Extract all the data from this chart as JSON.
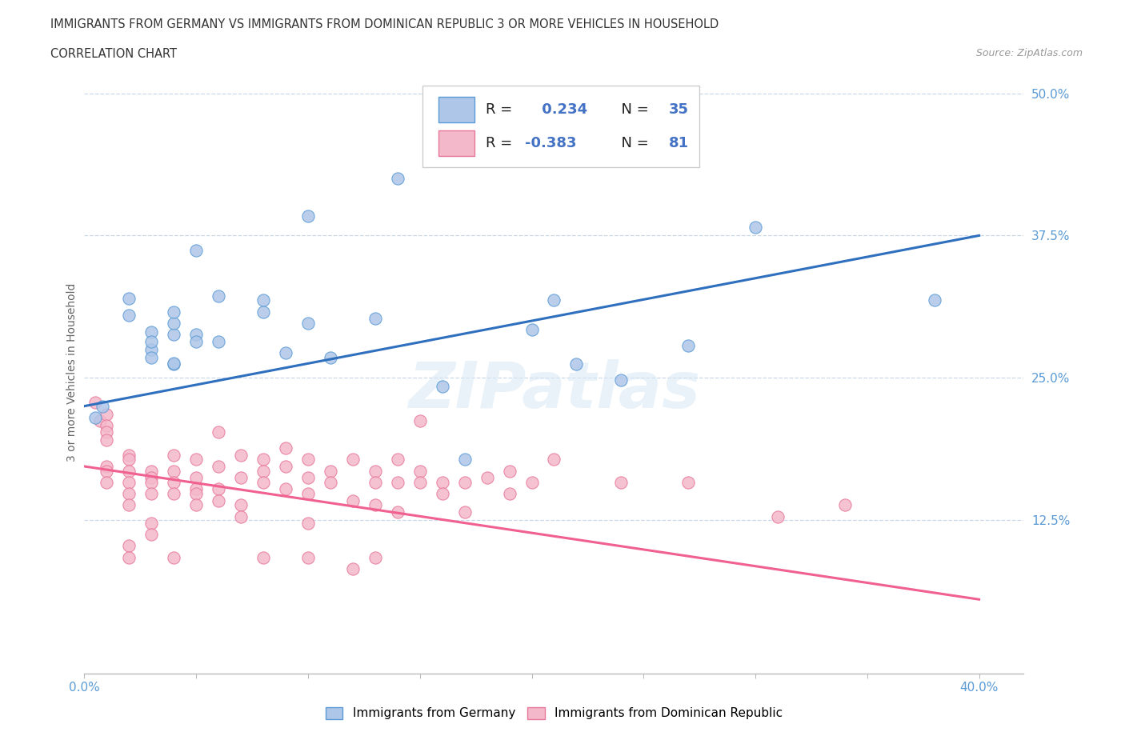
{
  "title_line1": "IMMIGRANTS FROM GERMANY VS IMMIGRANTS FROM DOMINICAN REPUBLIC 3 OR MORE VEHICLES IN HOUSEHOLD",
  "title_line2": "CORRELATION CHART",
  "source": "Source: ZipAtlas.com",
  "ylabel": "3 or more Vehicles in Household",
  "xlim": [
    0.0,
    0.42
  ],
  "ylim": [
    -0.01,
    0.52
  ],
  "xtick_positions": [
    0.0,
    0.05,
    0.1,
    0.15,
    0.2,
    0.25,
    0.3,
    0.35,
    0.4
  ],
  "xticklabels": [
    "0.0%",
    "",
    "",
    "",
    "",
    "",
    "",
    "",
    "40.0%"
  ],
  "ytick_positions": [
    0.125,
    0.25,
    0.375,
    0.5
  ],
  "ytick_labels": [
    "12.5%",
    "25.0%",
    "37.5%",
    "50.0%"
  ],
  "germany_color": "#aec6e8",
  "germany_edge": "#5b9bd5",
  "dominican_color": "#f4b8cb",
  "dominican_edge": "#e8789a",
  "trend_germany_color": "#2e6fbe",
  "trend_dominican_color": "#f06090",
  "R_germany": 0.234,
  "N_germany": 35,
  "R_dominican": -0.383,
  "N_dominican": 81,
  "trend_germany_x0": 0.0,
  "trend_germany_y0": 0.225,
  "trend_germany_x1": 0.4,
  "trend_germany_y1": 0.375,
  "trend_dom_x0": 0.0,
  "trend_dom_y0": 0.172,
  "trend_dom_x1": 0.4,
  "trend_dom_y1": 0.055,
  "germany_scatter": [
    [
      0.005,
      0.215
    ],
    [
      0.008,
      0.225
    ],
    [
      0.02,
      0.32
    ],
    [
      0.02,
      0.305
    ],
    [
      0.03,
      0.275
    ],
    [
      0.03,
      0.268
    ],
    [
      0.03,
      0.29
    ],
    [
      0.03,
      0.282
    ],
    [
      0.04,
      0.262
    ],
    [
      0.04,
      0.288
    ],
    [
      0.04,
      0.298
    ],
    [
      0.04,
      0.308
    ],
    [
      0.04,
      0.263
    ],
    [
      0.05,
      0.288
    ],
    [
      0.05,
      0.282
    ],
    [
      0.05,
      0.362
    ],
    [
      0.06,
      0.282
    ],
    [
      0.06,
      0.322
    ],
    [
      0.08,
      0.318
    ],
    [
      0.08,
      0.308
    ],
    [
      0.09,
      0.272
    ],
    [
      0.1,
      0.392
    ],
    [
      0.1,
      0.298
    ],
    [
      0.11,
      0.268
    ],
    [
      0.13,
      0.302
    ],
    [
      0.14,
      0.425
    ],
    [
      0.16,
      0.242
    ],
    [
      0.17,
      0.178
    ],
    [
      0.2,
      0.292
    ],
    [
      0.21,
      0.318
    ],
    [
      0.22,
      0.262
    ],
    [
      0.24,
      0.248
    ],
    [
      0.27,
      0.278
    ],
    [
      0.3,
      0.382
    ],
    [
      0.38,
      0.318
    ]
  ],
  "dominican_scatter": [
    [
      0.005,
      0.228
    ],
    [
      0.007,
      0.212
    ],
    [
      0.01,
      0.218
    ],
    [
      0.01,
      0.208
    ],
    [
      0.01,
      0.202
    ],
    [
      0.01,
      0.195
    ],
    [
      0.01,
      0.172
    ],
    [
      0.01,
      0.168
    ],
    [
      0.01,
      0.158
    ],
    [
      0.02,
      0.182
    ],
    [
      0.02,
      0.178
    ],
    [
      0.02,
      0.168
    ],
    [
      0.02,
      0.158
    ],
    [
      0.02,
      0.148
    ],
    [
      0.02,
      0.138
    ],
    [
      0.02,
      0.102
    ],
    [
      0.02,
      0.092
    ],
    [
      0.03,
      0.168
    ],
    [
      0.03,
      0.162
    ],
    [
      0.03,
      0.158
    ],
    [
      0.03,
      0.148
    ],
    [
      0.03,
      0.122
    ],
    [
      0.03,
      0.112
    ],
    [
      0.04,
      0.182
    ],
    [
      0.04,
      0.168
    ],
    [
      0.04,
      0.158
    ],
    [
      0.04,
      0.148
    ],
    [
      0.04,
      0.092
    ],
    [
      0.05,
      0.178
    ],
    [
      0.05,
      0.162
    ],
    [
      0.05,
      0.152
    ],
    [
      0.05,
      0.148
    ],
    [
      0.05,
      0.138
    ],
    [
      0.06,
      0.202
    ],
    [
      0.06,
      0.172
    ],
    [
      0.06,
      0.152
    ],
    [
      0.06,
      0.142
    ],
    [
      0.07,
      0.182
    ],
    [
      0.07,
      0.162
    ],
    [
      0.07,
      0.138
    ],
    [
      0.07,
      0.128
    ],
    [
      0.08,
      0.178
    ],
    [
      0.08,
      0.168
    ],
    [
      0.08,
      0.158
    ],
    [
      0.08,
      0.092
    ],
    [
      0.09,
      0.188
    ],
    [
      0.09,
      0.172
    ],
    [
      0.09,
      0.152
    ],
    [
      0.1,
      0.178
    ],
    [
      0.1,
      0.162
    ],
    [
      0.1,
      0.148
    ],
    [
      0.1,
      0.122
    ],
    [
      0.1,
      0.092
    ],
    [
      0.11,
      0.168
    ],
    [
      0.11,
      0.158
    ],
    [
      0.12,
      0.178
    ],
    [
      0.12,
      0.142
    ],
    [
      0.12,
      0.082
    ],
    [
      0.13,
      0.168
    ],
    [
      0.13,
      0.158
    ],
    [
      0.13,
      0.138
    ],
    [
      0.13,
      0.092
    ],
    [
      0.14,
      0.178
    ],
    [
      0.14,
      0.158
    ],
    [
      0.14,
      0.132
    ],
    [
      0.15,
      0.168
    ],
    [
      0.15,
      0.158
    ],
    [
      0.15,
      0.212
    ],
    [
      0.16,
      0.158
    ],
    [
      0.16,
      0.148
    ],
    [
      0.17,
      0.158
    ],
    [
      0.17,
      0.132
    ],
    [
      0.18,
      0.162
    ],
    [
      0.19,
      0.168
    ],
    [
      0.19,
      0.148
    ],
    [
      0.2,
      0.158
    ],
    [
      0.21,
      0.178
    ],
    [
      0.24,
      0.158
    ],
    [
      0.27,
      0.158
    ],
    [
      0.31,
      0.128
    ],
    [
      0.34,
      0.138
    ]
  ],
  "watermark_text": "ZIPatlas",
  "background_color": "#ffffff"
}
